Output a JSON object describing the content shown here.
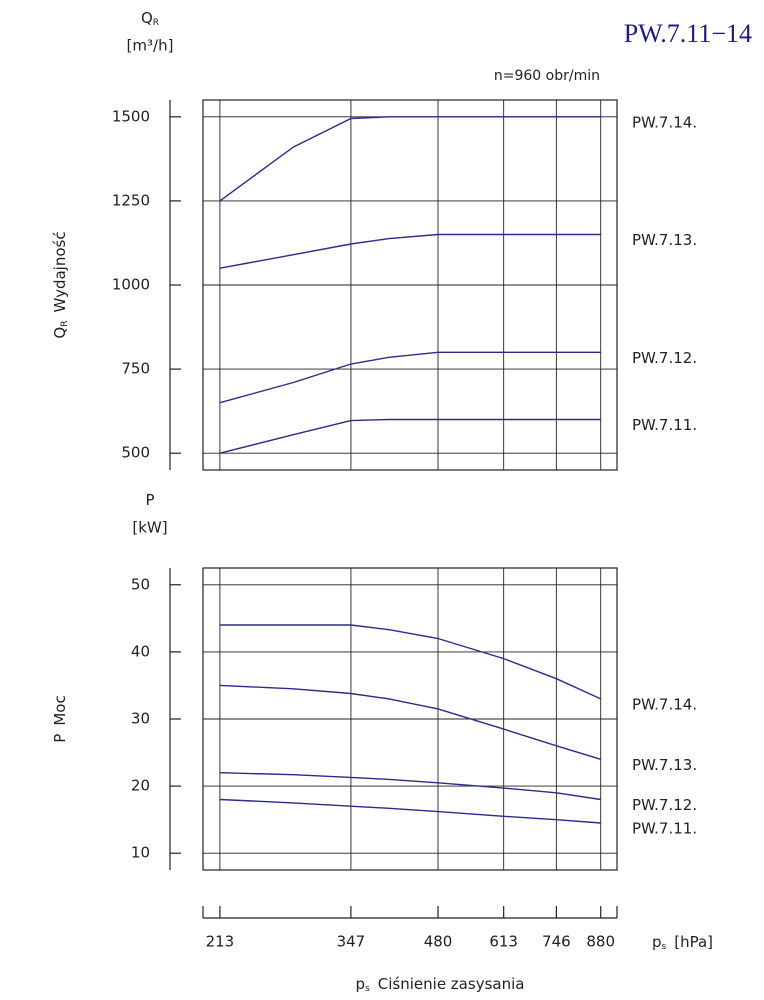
{
  "chart_data": {
    "type": "line",
    "title": "PW.7.11−14",
    "subtitle": "n=960 obr/min",
    "x": [
      213,
      280,
      347,
      400,
      480,
      613,
      746,
      880
    ],
    "xscale": "log",
    "xlim": [
      200,
      935
    ],
    "xticks": [
      213,
      347,
      480,
      613,
      746,
      880
    ],
    "xunit": {
      "symbol": "p",
      "sub": "s",
      "unit": "[hPa]"
    },
    "xlabel": {
      "symbol": "p",
      "sub": "s",
      "text": "Ciśnienie zasysania"
    },
    "grid": true,
    "panels": [
      {
        "yhead": {
          "symbol": "Q",
          "sub": "R",
          "unit": "[m³/h]"
        },
        "ylabel": {
          "symbol": "Q",
          "sub": "R",
          "text": "Wydajność"
        },
        "ylim": [
          450,
          1550
        ],
        "yticks": [
          500,
          750,
          1000,
          1250,
          1500
        ],
        "series": [
          {
            "name": "PW.7.14.",
            "color": "#2b2b8c",
            "values": [
              1250,
              1410,
              1495,
              1500,
              1500,
              1500,
              1500,
              1500
            ]
          },
          {
            "name": "PW.7.13.",
            "color": "#2b2b8c",
            "values": [
              1050,
              1090,
              1122,
              1138,
              1150,
              1150,
              1150,
              1150
            ]
          },
          {
            "name": "PW.7.12.",
            "color": "#2b2b8c",
            "values": [
              650,
              710,
              765,
              785,
              800,
              800,
              800,
              800
            ]
          },
          {
            "name": "PW.7.11.",
            "color": "#2b2b8c",
            "values": [
              500,
              555,
              597,
              600,
              600,
              600,
              600,
              600
            ]
          }
        ]
      },
      {
        "yhead": {
          "symbol": "P",
          "unit": "[kW]"
        },
        "ylabel": {
          "symbol": "P",
          "text": "Moc"
        },
        "ylim": [
          7.5,
          52.5
        ],
        "yticks": [
          10,
          20,
          30,
          40,
          50
        ],
        "series": [
          {
            "name": "PW.7.14.",
            "color": "#2b2b8c",
            "values": [
              44,
              44,
              44,
              43.3,
              42,
              39,
              36,
              33
            ]
          },
          {
            "name": "PW.7.13.",
            "color": "#2b2b8c",
            "values": [
              35,
              34.5,
              33.8,
              33,
              31.5,
              28.5,
              26,
              24
            ]
          },
          {
            "name": "PW.7.12.",
            "color": "#2b2b8c",
            "values": [
              22,
              21.7,
              21.3,
              21,
              20.5,
              19.7,
              19,
              18
            ]
          },
          {
            "name": "PW.7.11.",
            "color": "#2b2b8c",
            "values": [
              18,
              17.5,
              17,
              16.7,
              16.2,
              15.5,
              15,
              14.5
            ]
          }
        ]
      }
    ]
  }
}
